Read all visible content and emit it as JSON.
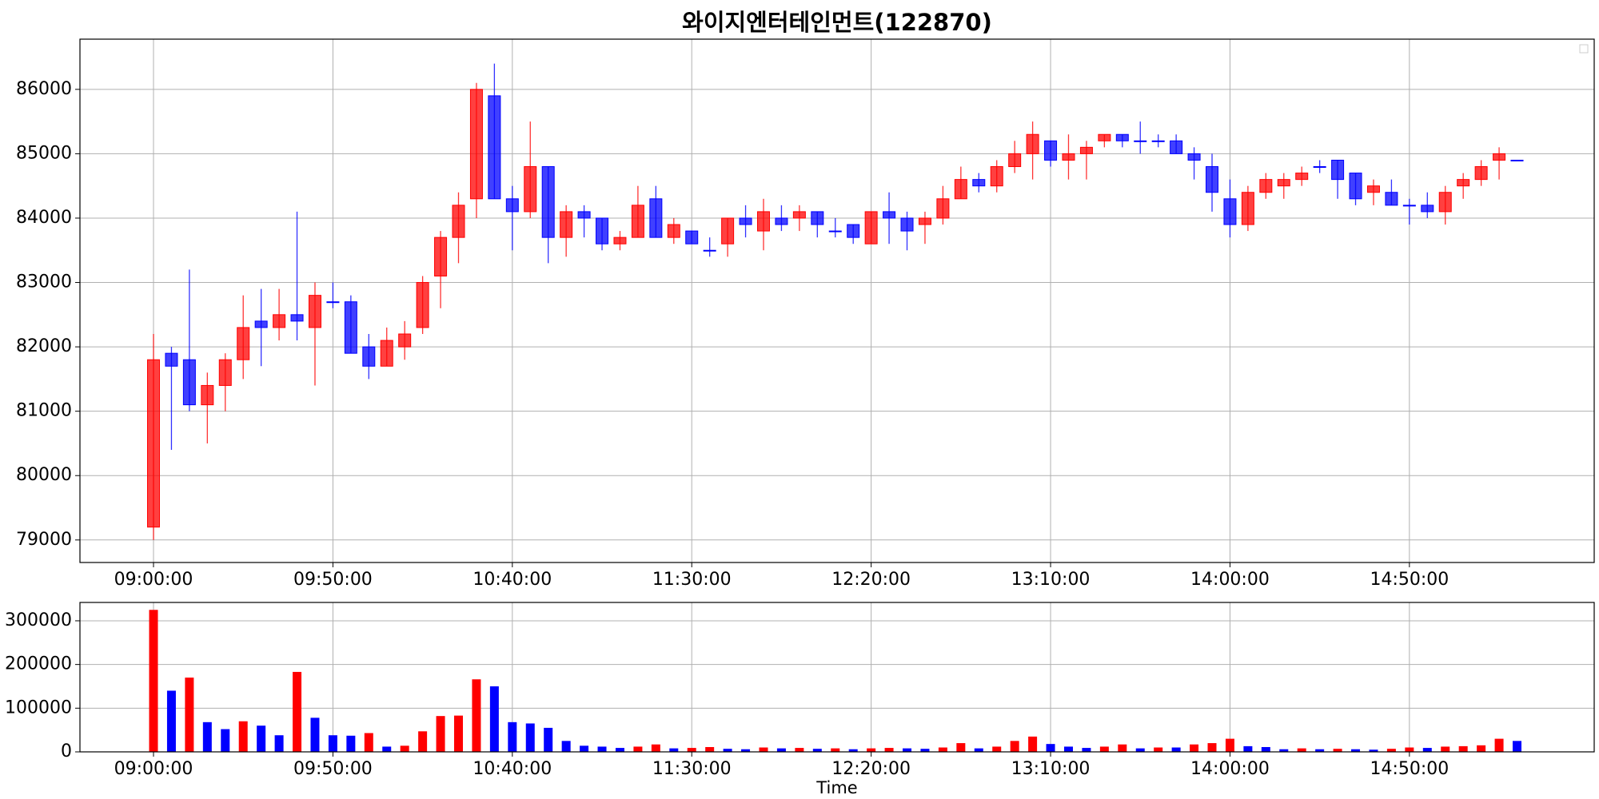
{
  "chart_data": {
    "type": "candlestick",
    "title": "와이지엔터테인먼트(122870)",
    "x_label": "Time",
    "categories": [
      "09:00:00",
      "09:05:00",
      "09:10:00",
      "09:15:00",
      "09:20:00",
      "09:25:00",
      "09:30:00",
      "09:35:00",
      "09:40:00",
      "09:45:00",
      "09:50:00",
      "09:55:00",
      "10:00:00",
      "10:05:00",
      "10:10:00",
      "10:15:00",
      "10:20:00",
      "10:25:00",
      "10:30:00",
      "10:35:00",
      "10:40:00",
      "10:45:00",
      "10:50:00",
      "10:55:00",
      "11:00:00",
      "11:05:00",
      "11:10:00",
      "11:15:00",
      "11:20:00",
      "11:25:00",
      "11:30:00",
      "11:35:00",
      "11:40:00",
      "11:45:00",
      "11:50:00",
      "11:55:00",
      "12:00:00",
      "12:05:00",
      "12:10:00",
      "12:15:00",
      "12:20:00",
      "12:25:00",
      "12:30:00",
      "12:35:00",
      "12:40:00",
      "12:45:00",
      "12:50:00",
      "12:55:00",
      "13:00:00",
      "13:05:00",
      "13:10:00",
      "13:15:00",
      "13:20:00",
      "13:25:00",
      "13:30:00",
      "13:35:00",
      "13:40:00",
      "13:45:00",
      "13:50:00",
      "13:55:00",
      "14:00:00",
      "14:05:00",
      "14:10:00",
      "14:15:00",
      "14:20:00",
      "14:25:00",
      "14:30:00",
      "14:35:00",
      "14:40:00",
      "14:45:00",
      "14:50:00",
      "14:55:00",
      "15:00:00",
      "15:05:00",
      "15:10:00",
      "15:15:00",
      "15:20:00"
    ],
    "open": [
      79200,
      81900,
      81800,
      81100,
      81400,
      81800,
      82400,
      82300,
      82500,
      82300,
      82700,
      82700,
      82000,
      81700,
      82000,
      82300,
      83100,
      83700,
      84300,
      85900,
      84300,
      84100,
      84800,
      83700,
      84100,
      84000,
      83600,
      83700,
      84300,
      83700,
      83800,
      83500,
      83600,
      84000,
      83800,
      84000,
      84000,
      84100,
      83800,
      83900,
      83600,
      84100,
      84000,
      83900,
      84000,
      84300,
      84600,
      84500,
      84800,
      85000,
      85200,
      84900,
      85000,
      85200,
      85300,
      85200,
      85200,
      85200,
      85000,
      84800,
      84300,
      83900,
      84400,
      84500,
      84600,
      84800,
      84900,
      84700,
      84400,
      84400,
      84200,
      84200,
      84100,
      84500,
      84600,
      84900,
      84900
    ],
    "high": [
      82200,
      82000,
      83200,
      81600,
      81900,
      82800,
      82900,
      82900,
      84100,
      83000,
      83000,
      82800,
      82200,
      82300,
      82400,
      83100,
      83800,
      84400,
      86100,
      86400,
      84500,
      85500,
      84800,
      84200,
      84200,
      84000,
      83800,
      84500,
      84500,
      84000,
      83800,
      83700,
      84000,
      84200,
      84300,
      84200,
      84200,
      84100,
      84000,
      83900,
      84100,
      84400,
      84100,
      84100,
      84500,
      84800,
      84700,
      84900,
      85200,
      85500,
      85200,
      85300,
      85200,
      85300,
      85300,
      85500,
      85300,
      85300,
      85100,
      85000,
      84600,
      84500,
      84700,
      84700,
      84800,
      84900,
      84900,
      84700,
      84600,
      84600,
      84300,
      84400,
      84500,
      84700,
      84900,
      85100,
      84900
    ],
    "low": [
      79000,
      80400,
      81000,
      80500,
      81000,
      81500,
      81700,
      82100,
      82100,
      81400,
      82600,
      81900,
      81500,
      81700,
      81800,
      82200,
      82600,
      83300,
      84000,
      84300,
      83500,
      84000,
      83300,
      83400,
      83700,
      83500,
      83500,
      83700,
      83700,
      83600,
      83600,
      83400,
      83400,
      83700,
      83500,
      83800,
      83800,
      83700,
      83700,
      83600,
      83600,
      83600,
      83500,
      83600,
      83900,
      84300,
      84400,
      84400,
      84700,
      84600,
      84800,
      84600,
      84600,
      85100,
      85100,
      85000,
      85100,
      85000,
      84600,
      84100,
      83700,
      83800,
      84300,
      84300,
      84500,
      84700,
      84300,
      84200,
      84200,
      84200,
      83900,
      84000,
      83900,
      84300,
      84500,
      84600,
      84900
    ],
    "close": [
      81800,
      81700,
      81100,
      81400,
      81800,
      82300,
      82300,
      82500,
      82400,
      82800,
      82700,
      81900,
      81700,
      82100,
      82200,
      83000,
      83700,
      84200,
      86000,
      84300,
      84100,
      84800,
      83700,
      84100,
      84000,
      83600,
      83700,
      84200,
      83700,
      83900,
      83600,
      83500,
      84000,
      83900,
      84100,
      83900,
      84100,
      83900,
      83800,
      83700,
      84100,
      84000,
      83800,
      84000,
      84300,
      84600,
      84500,
      84800,
      85000,
      85300,
      84900,
      85000,
      85100,
      85300,
      85200,
      85200,
      85200,
      85000,
      84900,
      84400,
      83900,
      84400,
      84600,
      84600,
      84700,
      84800,
      84600,
      84300,
      84500,
      84200,
      84200,
      84100,
      84400,
      84600,
      84800,
      85000,
      84900
    ],
    "volume": [
      325000,
      140000,
      170000,
      68000,
      52000,
      70000,
      60000,
      38000,
      183000,
      78000,
      38000,
      37000,
      43000,
      12000,
      14000,
      47000,
      82000,
      83000,
      166000,
      150000,
      68000,
      65000,
      55000,
      25000,
      14000,
      12000,
      9000,
      12000,
      17000,
      8000,
      9000,
      11000,
      7000,
      6000,
      10000,
      8000,
      9000,
      7000,
      8000,
      6000,
      8000,
      9000,
      8000,
      7000,
      10000,
      20000,
      8000,
      12000,
      25000,
      35000,
      18000,
      12000,
      9000,
      12000,
      17000,
      8000,
      10000,
      10000,
      17000,
      20000,
      30000,
      13000,
      11000,
      6000,
      8000,
      6000,
      7000,
      6000,
      5000,
      7000,
      10000,
      9000,
      12000,
      13000,
      15000,
      30000,
      25000
    ],
    "up_color": "#ff0000",
    "down_color": "#0000ff",
    "xlim": [
      -4.1,
      80.3
    ],
    "ylim": [
      78650,
      86780
    ],
    "yticks": [
      79000,
      80000,
      81000,
      82000,
      83000,
      84000,
      85000,
      86000
    ],
    "volume_ylim": [
      0,
      342000
    ],
    "volume_yticks": [
      0,
      100000,
      200000,
      300000
    ],
    "grid": true
  }
}
